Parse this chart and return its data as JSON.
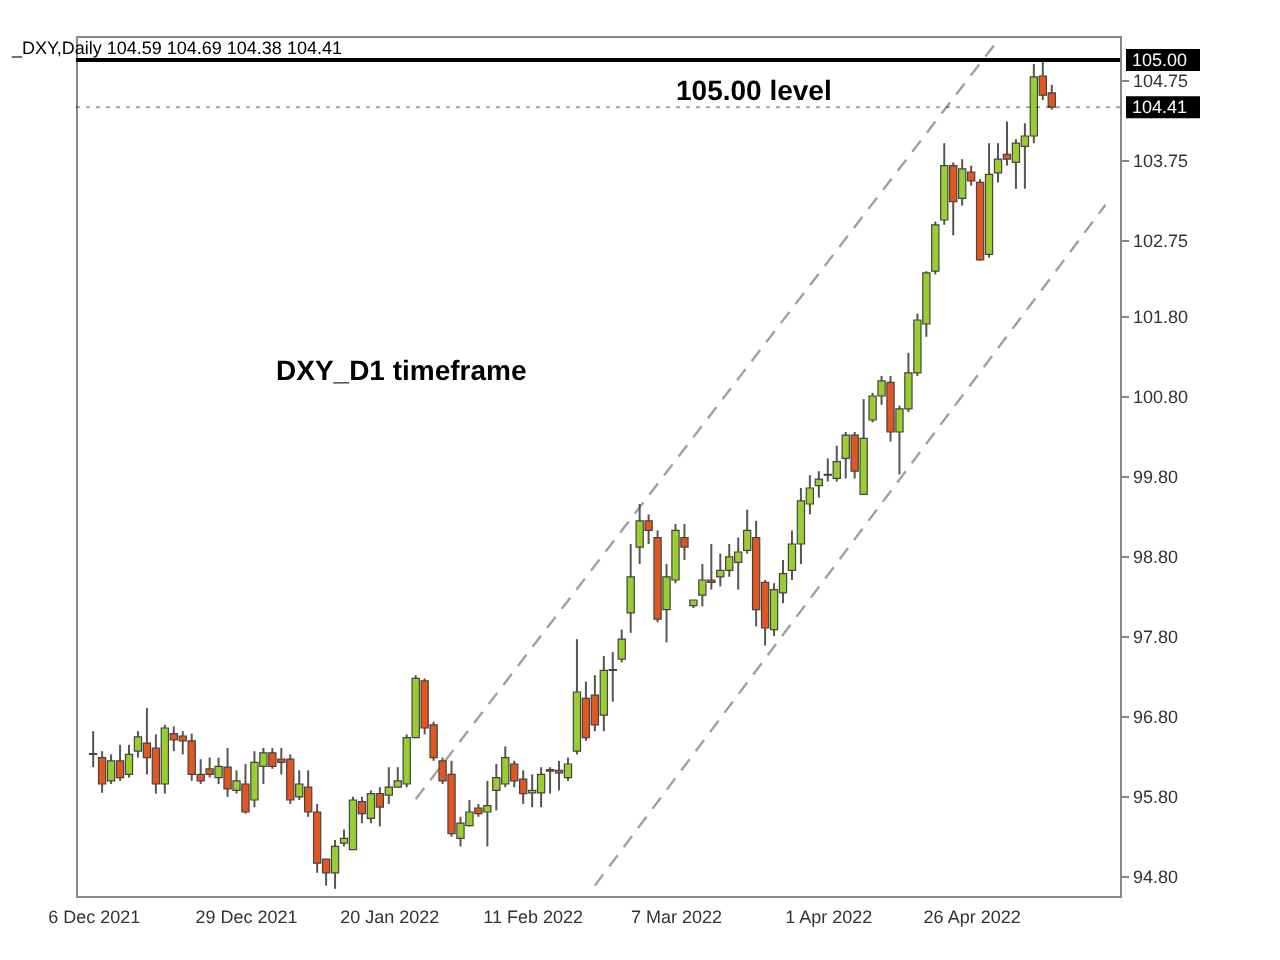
{
  "chart_data": {
    "type": "candlestick",
    "annotations": [
      "_DXY,Daily  104.59 104.69 104.38 104.41",
      "105.00 level",
      "DXY_D1 timeframe"
    ],
    "categories": [
      "6 Dec 2021",
      null,
      null,
      null,
      null,
      null,
      null,
      null,
      null,
      null,
      null,
      null,
      null,
      null,
      null,
      null,
      null,
      "29 Dec 2021",
      null,
      null,
      null,
      null,
      null,
      null,
      null,
      null,
      null,
      null,
      null,
      null,
      null,
      null,
      null,
      "20 Jan 2022",
      null,
      null,
      null,
      null,
      null,
      null,
      null,
      null,
      null,
      null,
      null,
      null,
      null,
      null,
      null,
      "11 Feb 2022",
      null,
      null,
      null,
      null,
      null,
      null,
      null,
      null,
      null,
      null,
      null,
      null,
      null,
      null,
      null,
      "7 Mar 2022",
      null,
      null,
      null,
      null,
      null,
      null,
      null,
      null,
      null,
      null,
      null,
      null,
      null,
      null,
      null,
      null,
      "1 Apr 2022",
      null,
      null,
      null,
      null,
      null,
      null,
      null,
      null,
      null,
      null,
      null,
      null,
      null,
      null,
      null,
      "26 Apr 2022",
      null,
      null,
      null,
      null,
      null,
      null,
      null,
      null,
      null,
      null,
      null,
      null,
      null,
      null,
      null
    ],
    "ohlc": [
      [
        96.32,
        96.61,
        96.16,
        96.33
      ],
      [
        96.28,
        96.36,
        95.84,
        95.95
      ],
      [
        95.99,
        96.32,
        95.95,
        96.24
      ],
      [
        96.24,
        96.44,
        95.99,
        96.03
      ],
      [
        96.07,
        96.44,
        96.03,
        96.32
      ],
      [
        96.36,
        96.61,
        96.28,
        96.54
      ],
      [
        96.46,
        96.9,
        96.07,
        96.28
      ],
      [
        96.4,
        96.57,
        95.83,
        95.95
      ],
      [
        95.95,
        96.69,
        95.83,
        96.65
      ],
      [
        96.58,
        96.67,
        96.36,
        96.5
      ],
      [
        96.55,
        96.61,
        96.32,
        96.49
      ],
      [
        96.49,
        96.58,
        95.99,
        96.07
      ],
      [
        96.07,
        96.26,
        95.95,
        95.99
      ],
      [
        96.14,
        96.28,
        96.03,
        96.07
      ],
      [
        96.03,
        96.28,
        95.95,
        96.17
      ],
      [
        96.16,
        96.4,
        95.79,
        95.89
      ],
      [
        95.87,
        96.12,
        95.83,
        95.99
      ],
      [
        95.95,
        96.2,
        95.58,
        95.6
      ],
      [
        95.75,
        96.36,
        95.66,
        96.22
      ],
      [
        96.17,
        96.4,
        95.95,
        96.34
      ],
      [
        96.34,
        96.4,
        96.14,
        96.17
      ],
      [
        96.26,
        96.4,
        96.07,
        96.22
      ],
      [
        96.26,
        96.32,
        95.7,
        95.75
      ],
      [
        95.79,
        96.12,
        95.75,
        95.95
      ],
      [
        95.91,
        96.12,
        95.54,
        95.6
      ],
      [
        95.6,
        95.7,
        94.84,
        94.96
      ],
      [
        95.01,
        95.01,
        94.68,
        94.84
      ],
      [
        94.84,
        95.25,
        94.64,
        95.17
      ],
      [
        95.21,
        95.38,
        95.17,
        95.27
      ],
      [
        95.13,
        95.79,
        95.13,
        95.75
      ],
      [
        95.73,
        95.79,
        95.46,
        95.58
      ],
      [
        95.52,
        95.87,
        95.46,
        95.83
      ],
      [
        95.83,
        95.91,
        95.42,
        95.66
      ],
      [
        95.81,
        96.16,
        95.7,
        95.91
      ],
      [
        95.91,
        96.16,
        95.91,
        95.99
      ],
      [
        95.95,
        96.57,
        95.91,
        96.53
      ],
      [
        96.53,
        97.31,
        96.53,
        97.27
      ],
      [
        97.24,
        97.27,
        96.57,
        96.65
      ],
      [
        96.69,
        96.73,
        96.24,
        96.28
      ],
      [
        96.24,
        96.28,
        95.95,
        95.99
      ],
      [
        96.07,
        96.24,
        95.29,
        95.33
      ],
      [
        95.27,
        95.54,
        95.17,
        95.46
      ],
      [
        95.43,
        95.75,
        95.42,
        95.6
      ],
      [
        95.65,
        95.7,
        95.54,
        95.58
      ],
      [
        95.6,
        95.99,
        95.17,
        95.68
      ],
      [
        95.87,
        96.2,
        95.62,
        96.03
      ],
      [
        95.95,
        96.42,
        95.91,
        96.28
      ],
      [
        96.2,
        96.24,
        95.91,
        95.99
      ],
      [
        96.01,
        96.12,
        95.7,
        95.83
      ],
      [
        95.84,
        96.07,
        95.66,
        95.87
      ],
      [
        95.84,
        96.16,
        95.66,
        96.07
      ],
      [
        96.13,
        96.16,
        95.83,
        96.11
      ],
      [
        96.12,
        96.24,
        95.87,
        96.09
      ],
      [
        96.03,
        96.28,
        95.99,
        96.2
      ],
      [
        96.36,
        97.76,
        96.32,
        97.1
      ],
      [
        97.02,
        97.23,
        96.49,
        96.53
      ],
      [
        97.06,
        97.31,
        96.61,
        96.69
      ],
      [
        96.81,
        97.55,
        96.61,
        97.37
      ],
      [
        97.37,
        97.6,
        96.98,
        97.38
      ],
      [
        97.51,
        97.88,
        97.47,
        97.76
      ],
      [
        98.09,
        98.95,
        97.84,
        98.54
      ],
      [
        98.91,
        99.45,
        98.7,
        99.24
      ],
      [
        99.24,
        99.32,
        98.95,
        99.12
      ],
      [
        99.03,
        99.12,
        97.97,
        98.01
      ],
      [
        98.13,
        98.7,
        97.72,
        98.54
      ],
      [
        98.5,
        99.2,
        98.46,
        99.12
      ],
      [
        99.03,
        99.2,
        98.75,
        98.91
      ],
      [
        98.18,
        98.25,
        98.15,
        98.25
      ],
      [
        98.31,
        98.7,
        98.17,
        98.5
      ],
      [
        98.5,
        98.95,
        98.38,
        98.47
      ],
      [
        98.54,
        98.83,
        98.42,
        98.62
      ],
      [
        98.62,
        98.95,
        98.54,
        98.79
      ],
      [
        98.72,
        99.03,
        98.38,
        98.85
      ],
      [
        98.87,
        99.38,
        98.83,
        99.12
      ],
      [
        99.03,
        99.24,
        97.92,
        98.13
      ],
      [
        98.47,
        98.5,
        97.68,
        97.9
      ],
      [
        97.88,
        98.46,
        97.8,
        98.38
      ],
      [
        98.34,
        98.75,
        98.21,
        98.58
      ],
      [
        98.62,
        99.12,
        98.5,
        98.95
      ],
      [
        98.95,
        99.65,
        98.7,
        99.49
      ],
      [
        99.45,
        99.81,
        99.32,
        99.65
      ],
      [
        99.68,
        99.86,
        99.53,
        99.76
      ],
      [
        99.81,
        100.02,
        99.73,
        99.82
      ],
      [
        99.77,
        100.18,
        99.73,
        99.98
      ],
      [
        100.02,
        100.35,
        99.77,
        100.31
      ],
      [
        100.31,
        100.35,
        99.77,
        99.86
      ],
      [
        99.57,
        100.76,
        99.57,
        100.27
      ],
      [
        100.5,
        100.84,
        100.47,
        100.8
      ],
      [
        100.8,
        101.05,
        100.69,
        100.99
      ],
      [
        100.97,
        101.05,
        100.23,
        100.35
      ],
      [
        100.35,
        100.68,
        99.82,
        100.64
      ],
      [
        100.64,
        101.34,
        100.6,
        101.09
      ],
      [
        101.09,
        101.83,
        101.05,
        101.75
      ],
      [
        101.7,
        102.36,
        101.54,
        102.34
      ],
      [
        102.36,
        102.98,
        102.32,
        102.94
      ],
      [
        103.0,
        103.96,
        102.94,
        103.68
      ],
      [
        103.68,
        103.72,
        102.81,
        103.23
      ],
      [
        103.27,
        103.76,
        103.18,
        103.64
      ],
      [
        103.6,
        103.68,
        103.43,
        103.49
      ],
      [
        103.47,
        103.51,
        102.49,
        102.5
      ],
      [
        102.57,
        103.96,
        102.53,
        103.57
      ],
      [
        103.59,
        103.96,
        103.47,
        103.76
      ],
      [
        103.82,
        104.23,
        103.68,
        103.76
      ],
      [
        103.72,
        104.01,
        103.39,
        103.96
      ],
      [
        103.92,
        104.21,
        103.39,
        104.05
      ],
      [
        104.05,
        104.95,
        103.96,
        104.79
      ],
      [
        104.8,
        104.99,
        104.5,
        104.56
      ],
      [
        104.59,
        104.69,
        104.38,
        104.41
      ],
      null,
      null,
      null,
      null,
      null,
      null
    ],
    "colors": [
      "#e2561f",
      "#e2561f",
      "#9acd32",
      "#e2561f",
      "#9acd32",
      "#9acd32",
      "#e2561f",
      "#e2561f",
      "#9acd32",
      "#e2561f",
      "#e2561f",
      "#e2561f",
      "#e2561f",
      "#e2561f",
      "#9acd32",
      "#e2561f",
      "#9acd32",
      "#e2561f",
      "#9acd32",
      "#9acd32",
      "#e2561f",
      "#e2561f",
      "#e2561f",
      "#9acd32",
      "#e2561f",
      "#e2561f",
      "#e2561f",
      "#9acd32",
      "#9acd32",
      "#9acd32",
      "#e2561f",
      "#9acd32",
      "#e2561f",
      "#9acd32",
      "#9acd32",
      "#9acd32",
      "#9acd32",
      "#e2561f",
      "#e2561f",
      "#e2561f",
      "#e2561f",
      "#9acd32",
      "#9acd32",
      "#e2561f",
      "#9acd32",
      "#9acd32",
      "#9acd32",
      "#e2561f",
      "#e2561f",
      "#9acd32",
      "#9acd32",
      "#e2561f",
      "#e2561f",
      "#9acd32",
      "#9acd32",
      "#e2561f",
      "#e2561f",
      "#9acd32",
      "#9acd32",
      "#9acd32",
      "#9acd32",
      "#9acd32",
      "#e2561f",
      "#e2561f",
      "#9acd32",
      "#9acd32",
      "#e2561f",
      "#9acd32",
      "#9acd32",
      "#e2561f",
      "#9acd32",
      "#9acd32",
      "#9acd32",
      "#9acd32",
      "#e2561f",
      "#e2561f",
      "#9acd32",
      "#9acd32",
      "#9acd32",
      "#9acd32",
      "#9acd32",
      "#9acd32",
      "#9acd32",
      "#9acd32",
      "#9acd32",
      "#e2561f",
      "#9acd32",
      "#9acd32",
      "#9acd32",
      "#e2561f",
      "#9acd32",
      "#9acd32",
      "#9acd32",
      "#9acd32",
      "#9acd32",
      "#9acd32",
      "#e2561f",
      "#9acd32",
      "#e2561f",
      "#e2561f",
      "#9acd32",
      "#9acd32",
      "#e2561f",
      "#9acd32",
      "#9acd32",
      "#9acd32",
      "#e2561f",
      "#e2561f",
      null,
      null,
      null,
      null,
      null,
      null
    ],
    "series": [
      {
        "type": "line",
        "color": "#a0a0a0",
        "line_style": "dashed",
        "values": [
          null,
          null,
          null,
          null,
          null,
          null,
          null,
          null,
          null,
          null,
          null,
          null,
          null,
          null,
          null,
          null,
          null,
          null,
          null,
          null,
          null,
          null,
          null,
          null,
          null,
          null,
          null,
          null,
          null,
          null,
          null,
          null,
          null,
          null,
          null,
          null,
          95.76,
          null,
          null,
          null,
          null,
          null,
          null,
          null,
          null,
          null,
          null,
          null,
          null,
          null,
          null,
          null,
          null,
          null,
          null,
          null,
          null,
          null,
          null,
          null,
          null,
          null,
          null,
          null,
          null,
          null,
          null,
          null,
          null,
          null,
          null,
          null,
          null,
          null,
          null,
          null,
          null,
          null,
          null,
          null,
          null,
          null,
          null,
          null,
          null,
          null,
          null,
          null,
          null,
          null,
          null,
          null,
          null,
          null,
          null,
          null,
          null,
          null,
          null,
          null,
          null,
          105.25,
          null,
          null,
          null,
          null,
          null,
          null,
          null,
          null,
          null,
          null,
          null,
          null
        ]
      },
      {
        "type": "line",
        "color": "#a0a0a0",
        "line_style": "dashed",
        "values": [
          null,
          null,
          null,
          null,
          null,
          null,
          null,
          null,
          null,
          null,
          null,
          null,
          null,
          null,
          null,
          null,
          null,
          null,
          null,
          null,
          null,
          null,
          null,
          null,
          null,
          null,
          null,
          null,
          null,
          null,
          null,
          null,
          null,
          null,
          null,
          null,
          null,
          null,
          null,
          null,
          null,
          null,
          null,
          null,
          null,
          null,
          null,
          null,
          null,
          null,
          null,
          null,
          null,
          null,
          null,
          null,
          94.68,
          null,
          null,
          null,
          null,
          null,
          null,
          null,
          null,
          null,
          null,
          null,
          null,
          null,
          null,
          null,
          null,
          null,
          null,
          null,
          null,
          null,
          null,
          null,
          null,
          null,
          null,
          null,
          null,
          null,
          null,
          null,
          null,
          null,
          null,
          null,
          null,
          null,
          null,
          null,
          null,
          null,
          null,
          null,
          null,
          null,
          null,
          null,
          null,
          null,
          null,
          null,
          null,
          null,
          null,
          null,
          null,
          103.19
        ]
      }
    ],
    "ylim": [
      94.55,
      105.3
    ],
    "yticks": [
      {
        "value": 94.8,
        "label": "94.80"
      },
      {
        "value": 95.8,
        "label": "95.80"
      },
      {
        "value": 96.8,
        "label": "96.80"
      },
      {
        "value": 97.8,
        "label": "97.80"
      },
      {
        "value": 98.8,
        "label": "98.80"
      },
      {
        "value": 99.8,
        "label": "99.80"
      },
      {
        "value": 100.8,
        "label": "100.80"
      },
      {
        "value": 101.8,
        "label": "101.80"
      },
      {
        "value": 102.75,
        "label": "102.75"
      },
      {
        "value": 103.75,
        "label": "103.75"
      },
      {
        "value": 104.75,
        "label": "104.75"
      }
    ],
    "ref_lines": [
      {
        "axis": "y",
        "value": 105,
        "label": "105.00",
        "color": "#000000",
        "line_style": "solid"
      },
      {
        "axis": "y",
        "value": 104.41,
        "label": "104.41",
        "color": "#000000",
        "line_style": "dotted"
      }
    ],
    "grid": false
  }
}
